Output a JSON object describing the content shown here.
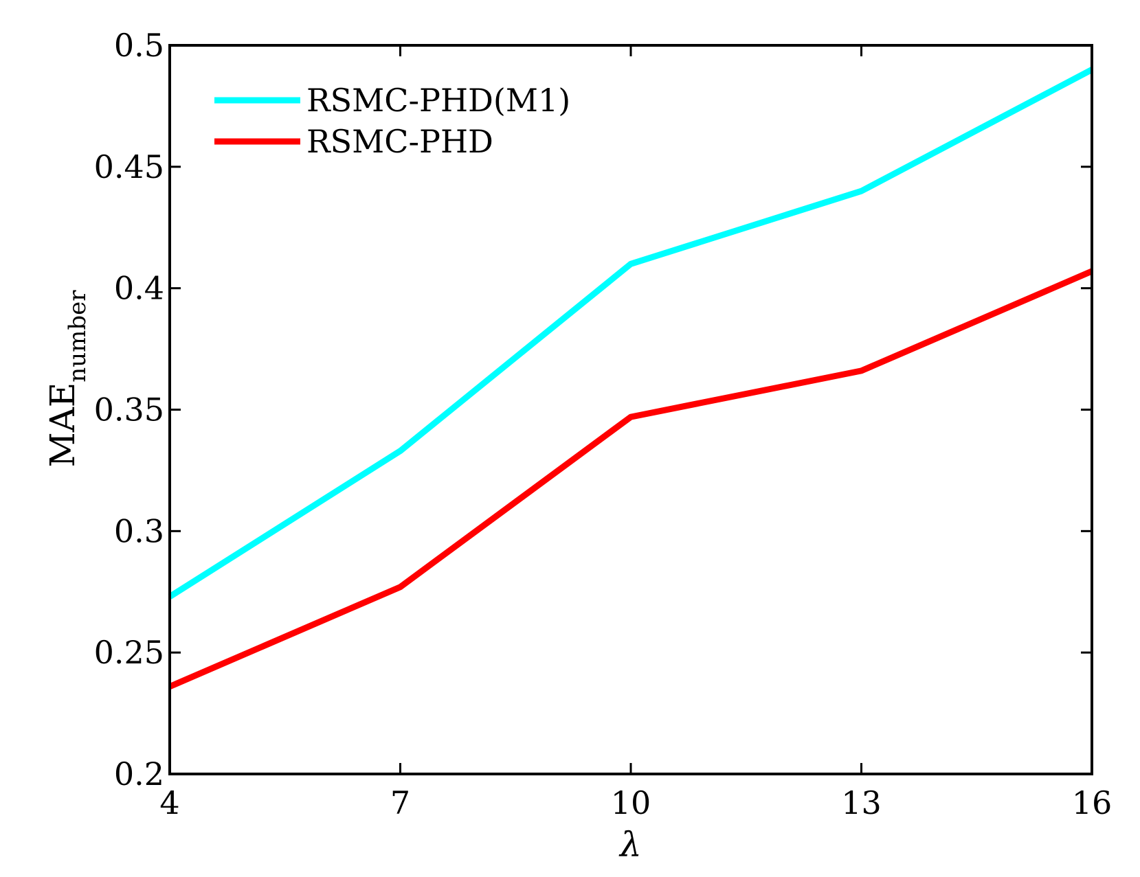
{
  "chart_data": {
    "type": "line",
    "x": [
      4,
      7,
      10,
      13,
      16
    ],
    "xlim": [
      4,
      16
    ],
    "ylim": [
      0.2,
      0.5
    ],
    "xticks": [
      "4",
      "7",
      "10",
      "13",
      "16"
    ],
    "yticks": [
      "0.2",
      "0.25",
      "0.3",
      "0.35",
      "0.4",
      "0.45",
      "0.5"
    ],
    "xlabel": "λ",
    "ylabel": {
      "main": "MAE",
      "subscript": "number"
    },
    "grid": false,
    "legend_position": "top-left",
    "series": [
      {
        "name": "RSMC-PHD(M1)",
        "color": "#00ffff",
        "values": [
          0.273,
          0.333,
          0.41,
          0.44,
          0.49
        ]
      },
      {
        "name": "RSMC-PHD",
        "color": "#ff0000",
        "values": [
          0.236,
          0.277,
          0.347,
          0.366,
          0.407
        ]
      }
    ]
  }
}
